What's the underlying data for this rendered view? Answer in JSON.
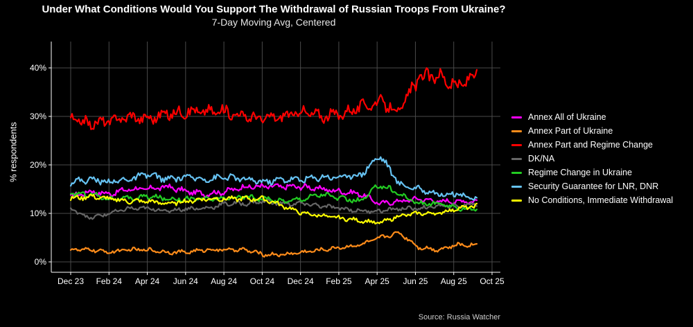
{
  "chart_data": {
    "type": "line",
    "title": "Under What Conditions Would You Support The Withdrawal of Russian Troops From Ukraine?",
    "subtitle": "7-Day Moving Avg, Centered",
    "xlabel": "",
    "ylabel": "% respondents",
    "source": "Source: Russia Watcher",
    "x_ticks": [
      "Dec 23",
      "Feb 24",
      "Apr 24",
      "Jun 24",
      "Aug 24",
      "Oct 24",
      "Dec 24",
      "Feb 25",
      "Apr 25",
      "Jun 25",
      "Aug 25",
      "Oct 25"
    ],
    "y_ticks": [
      "0%",
      "10%",
      "20%",
      "30%",
      "40%"
    ],
    "ylim": [
      0,
      45
    ],
    "grid": true,
    "legend_position": "right",
    "x": [
      "Dec 23",
      "Jan 24",
      "Feb 24",
      "Mar 24",
      "Apr 24",
      "May 24",
      "Jun 24",
      "Jul 24",
      "Aug 24",
      "Sep 24",
      "Oct 24",
      "Nov 24",
      "Dec 24",
      "Jan 25",
      "Feb 25",
      "Mar 25",
      "Apr 25",
      "May 25",
      "Jun 25",
      "Jul 25",
      "Aug 25",
      "Sep 25"
    ],
    "series": [
      {
        "name": "Annex All of Ukraine",
        "color": "#ff00ff",
        "values": [
          13.5,
          14.5,
          14,
          15,
          15,
          15.5,
          14.5,
          14,
          14.5,
          15.5,
          15.5,
          15.5,
          15.5,
          15,
          14.5,
          14,
          12,
          12.5,
          13,
          12.5,
          12.5,
          12.5
        ]
      },
      {
        "name": "Annex Part of Ukraine",
        "color": "#ff8c1a",
        "values": [
          2.5,
          2.5,
          2,
          2.5,
          2.5,
          2,
          2,
          2.5,
          2.5,
          2.5,
          1.5,
          1.5,
          2,
          2.5,
          3,
          3.5,
          5,
          6,
          3,
          2.5,
          3.5,
          3.5
        ]
      },
      {
        "name": "Annex Part and Regime Change",
        "color": "#ff0000",
        "values": [
          29.5,
          28.5,
          29,
          30,
          29.5,
          30.5,
          31,
          31,
          31,
          30,
          29.5,
          30,
          31,
          30,
          30.5,
          32,
          33,
          31,
          38,
          38.5,
          36,
          39
        ]
      },
      {
        "name": "DK/NA",
        "color": "#666666",
        "values": [
          11,
          9,
          10,
          11,
          11,
          10.5,
          11,
          11,
          12,
          12,
          12.5,
          12,
          12,
          11.5,
          11,
          10.5,
          10.5,
          11,
          11,
          11.5,
          11.5,
          12
        ]
      },
      {
        "name": "Regime Change in Ukraine",
        "color": "#22cc22",
        "values": [
          14,
          14,
          13,
          13,
          13.5,
          13,
          13,
          13,
          13,
          13.5,
          13,
          12.5,
          13,
          14,
          13,
          12.5,
          16,
          14,
          12,
          12,
          11,
          11
        ]
      },
      {
        "name": "Security Guarantee for LNR, DNR",
        "color": "#66c2f2",
        "values": [
          16.5,
          17,
          16.5,
          17,
          18,
          17,
          17.5,
          17,
          17.5,
          17,
          16.5,
          17,
          17,
          17.5,
          17.5,
          18,
          22,
          16,
          15,
          14,
          14,
          13
        ]
      },
      {
        "name": "No Conditions, Immediate Withdrawal",
        "color": "#ffff00",
        "values": [
          13,
          13.5,
          13,
          12.5,
          12.5,
          12,
          12.5,
          13,
          13,
          13,
          13,
          11.5,
          10,
          9.5,
          9,
          8.5,
          8,
          9.5,
          10,
          10,
          11,
          11.5
        ]
      }
    ]
  }
}
